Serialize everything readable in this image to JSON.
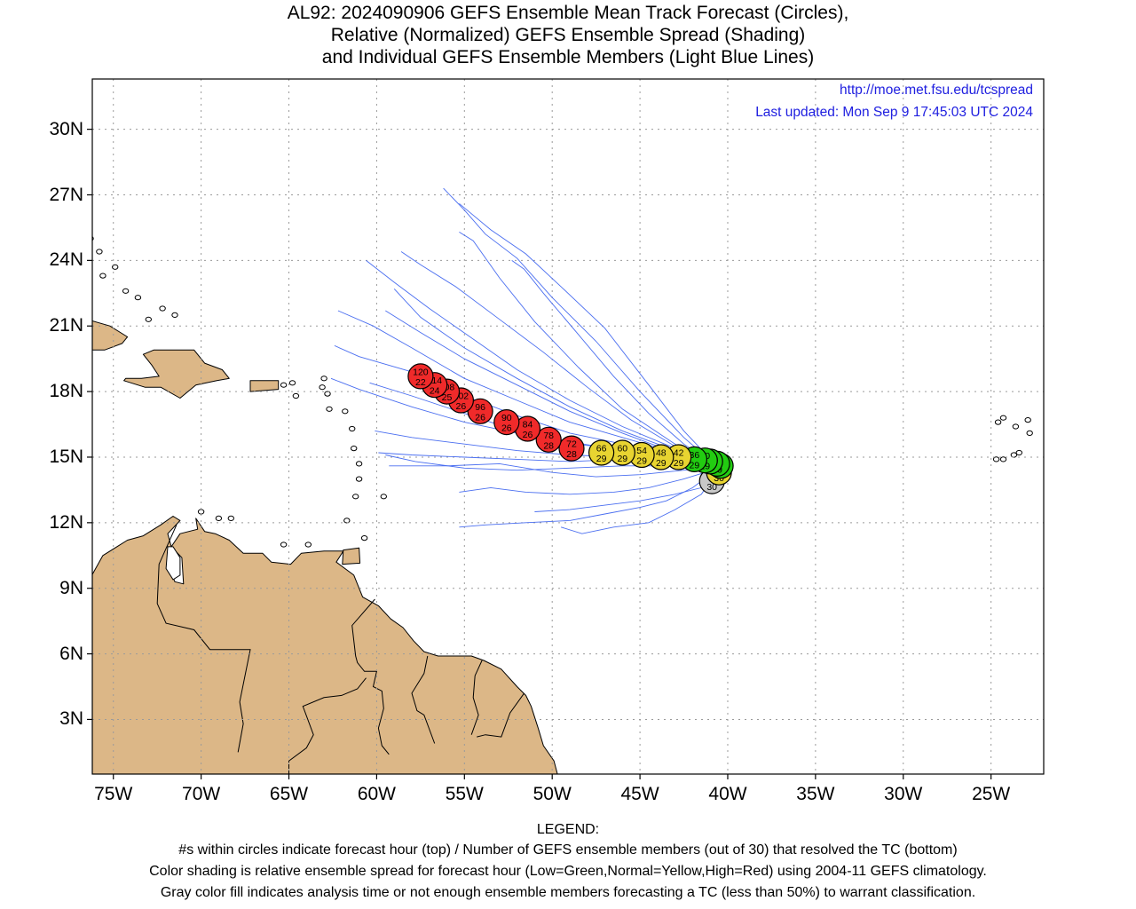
{
  "title": {
    "line1": "AL92: 2024090906 GEFS Ensemble Mean Track Forecast (Circles),",
    "line2": "Relative (Normalized) GEFS Ensemble Spread (Shading)",
    "line3": "and Individual GEFS Ensemble Members (Light Blue Lines)"
  },
  "header_links": {
    "url": "http://moe.met.fsu.edu/tcspread",
    "updated": "Last updated: Mon Sep  9 17:45:03 UTC 2024"
  },
  "axes": {
    "x_ticks": [
      "75W",
      "70W",
      "65W",
      "60W",
      "55W",
      "50W",
      "45W",
      "40W",
      "35W",
      "30W",
      "25W"
    ],
    "x_values": [
      -75,
      -70,
      -65,
      -60,
      -55,
      -50,
      -45,
      -40,
      -35,
      -30,
      -25
    ],
    "y_ticks": [
      "3N",
      "6N",
      "9N",
      "12N",
      "15N",
      "18N",
      "21N",
      "24N",
      "27N",
      "30N"
    ],
    "y_values": [
      3,
      6,
      9,
      12,
      15,
      18,
      21,
      24,
      27,
      30
    ],
    "lon_range": [
      -76.2,
      -22.0
    ],
    "lat_range": [
      0.5,
      32.3
    ],
    "grid": "dotted"
  },
  "colors": {
    "land": "#dcb787",
    "track_member": "#4a6ef0",
    "spread_low": "#22cc11",
    "spread_normal": "#e8d431",
    "spread_high": "#f02a2a",
    "analysis_gray": "#c8c8c8"
  },
  "chart_data": {
    "type": "scatter",
    "series_name": "GEFS Ensemble Mean Track",
    "points": [
      {
        "hour": "0",
        "members": "30",
        "lon": -40.9,
        "lat": 13.9,
        "spread": "gray"
      },
      {
        "hour": "6",
        "members": "30",
        "lon": -40.5,
        "lat": 14.3,
        "spread": "yellow"
      },
      {
        "hour": "12",
        "members": "29",
        "lon": -40.4,
        "lat": 14.6,
        "spread": "green"
      },
      {
        "hour": "18",
        "members": "29",
        "lon": -40.6,
        "lat": 14.7,
        "spread": "green"
      },
      {
        "hour": "24",
        "members": "29",
        "lon": -41.0,
        "lat": 14.8,
        "spread": "green"
      },
      {
        "hour": "30",
        "members": "29",
        "lon": -41.3,
        "lat": 14.85,
        "spread": "green"
      },
      {
        "hour": "36",
        "members": "29",
        "lon": -41.9,
        "lat": 14.9,
        "spread": "green"
      },
      {
        "hour": "42",
        "members": "29",
        "lon": -42.8,
        "lat": 15.0,
        "spread": "yellow"
      },
      {
        "hour": "48",
        "members": "29",
        "lon": -43.8,
        "lat": 15.0,
        "spread": "yellow"
      },
      {
        "hour": "54",
        "members": "29",
        "lon": -44.9,
        "lat": 15.1,
        "spread": "yellow"
      },
      {
        "hour": "60",
        "members": "29",
        "lon": -46.0,
        "lat": 15.2,
        "spread": "yellow"
      },
      {
        "hour": "66",
        "members": "29",
        "lon": -47.2,
        "lat": 15.2,
        "spread": "yellow"
      },
      {
        "hour": "72",
        "members": "28",
        "lon": -48.9,
        "lat": 15.4,
        "spread": "red"
      },
      {
        "hour": "78",
        "members": "28",
        "lon": -50.2,
        "lat": 15.8,
        "spread": "red"
      },
      {
        "hour": "84",
        "members": "26",
        "lon": -51.4,
        "lat": 16.3,
        "spread": "red"
      },
      {
        "hour": "90",
        "members": "26",
        "lon": -52.6,
        "lat": 16.6,
        "spread": "red"
      },
      {
        "hour": "96",
        "members": "26",
        "lon": -54.1,
        "lat": 17.1,
        "spread": "red"
      },
      {
        "hour": "102",
        "members": "26",
        "lon": -55.2,
        "lat": 17.6,
        "spread": "red"
      },
      {
        "hour": "108",
        "members": "25",
        "lon": -56.0,
        "lat": 18.0,
        "spread": "red"
      },
      {
        "hour": "114",
        "members": "24",
        "lon": -56.7,
        "lat": 18.3,
        "spread": "red"
      },
      {
        "hour": "120",
        "members": "22",
        "lon": -57.5,
        "lat": 18.7,
        "spread": "red"
      }
    ],
    "members": [
      [
        [
          -40.5,
          14.5
        ],
        [
          -43,
          15.1
        ],
        [
          -46,
          15.6
        ],
        [
          -49,
          16.1
        ],
        [
          -52,
          16.9
        ],
        [
          -55,
          17.8
        ],
        [
          -58,
          18.9
        ],
        [
          -61,
          19.6
        ],
        [
          -62.4,
          20.1
        ]
      ],
      [
        [
          -40.5,
          14.5
        ],
        [
          -43,
          15.2
        ],
        [
          -46,
          15.9
        ],
        [
          -49,
          16.6
        ],
        [
          -52,
          17.6
        ],
        [
          -55,
          18.6
        ],
        [
          -58,
          20.0
        ],
        [
          -60.2,
          21.0
        ],
        [
          -62.2,
          21.7
        ]
      ],
      [
        [
          -40.5,
          14.5
        ],
        [
          -43,
          15.5
        ],
        [
          -45.5,
          16.7
        ],
        [
          -48,
          18.2
        ],
        [
          -50.5,
          19.8
        ],
        [
          -53,
          21.3
        ],
        [
          -55.5,
          22.8
        ],
        [
          -57.5,
          23.8
        ],
        [
          -58.6,
          24.4
        ]
      ],
      [
        [
          -40.5,
          14.5
        ],
        [
          -43,
          15.6
        ],
        [
          -46,
          17.2
        ],
        [
          -48.5,
          19.1
        ],
        [
          -51,
          21.2
        ],
        [
          -53,
          23.2
        ],
        [
          -54.5,
          24.9
        ],
        [
          -55.3,
          25.3
        ]
      ],
      [
        [
          -40.5,
          14.5
        ],
        [
          -42.5,
          15.9
        ],
        [
          -45,
          18.0
        ],
        [
          -47.5,
          20.3
        ],
        [
          -50,
          22.3
        ],
        [
          -52,
          24.1
        ],
        [
          -53.8,
          25.2
        ],
        [
          -55,
          26.3
        ],
        [
          -56.2,
          27.3
        ]
      ],
      [
        [
          -40.5,
          14.5
        ],
        [
          -42.5,
          16.2
        ],
        [
          -44.5,
          18.3
        ],
        [
          -47,
          20.9
        ],
        [
          -49.5,
          22.8
        ],
        [
          -51.5,
          24.3
        ],
        [
          -53.5,
          25.4
        ],
        [
          -55.3,
          26.6
        ]
      ],
      [
        [
          -40.5,
          14.5
        ],
        [
          -43,
          15.3
        ],
        [
          -46,
          16.2
        ],
        [
          -49,
          17.3
        ],
        [
          -52,
          18.6
        ],
        [
          -55,
          20.0
        ],
        [
          -57.5,
          21.4
        ],
        [
          -59,
          22.7
        ]
      ],
      [
        [
          -40.5,
          14.5
        ],
        [
          -43,
          15.1
        ],
        [
          -46,
          15.4
        ],
        [
          -49,
          15.6
        ],
        [
          -52,
          16.1
        ],
        [
          -55,
          16.6
        ],
        [
          -58,
          17.3
        ],
        [
          -61,
          18.1
        ],
        [
          -62.6,
          18.6
        ]
      ],
      [
        [
          -40.5,
          14.5
        ],
        [
          -43,
          14.9
        ],
        [
          -46,
          15.0
        ],
        [
          -49,
          15.1
        ],
        [
          -52,
          15.3
        ],
        [
          -55,
          15.6
        ],
        [
          -58,
          15.9
        ],
        [
          -60.1,
          16.2
        ]
      ],
      [
        [
          -40.5,
          14.5
        ],
        [
          -43,
          14.8
        ],
        [
          -46,
          14.9
        ],
        [
          -49,
          14.8
        ],
        [
          -52,
          14.9
        ],
        [
          -55,
          15.0
        ],
        [
          -58,
          15.1
        ],
        [
          -59.9,
          15.2
        ]
      ],
      [
        [
          -40.5,
          14.5
        ],
        [
          -42.5,
          14.4
        ],
        [
          -45,
          14.2
        ],
        [
          -47.5,
          14.1
        ],
        [
          -50,
          14.3
        ],
        [
          -53,
          14.7
        ],
        [
          -56,
          14.6
        ],
        [
          -59.3,
          14.6
        ]
      ],
      [
        [
          -40.5,
          14.5
        ],
        [
          -42.5,
          14.0
        ],
        [
          -44.5,
          13.6
        ],
        [
          -46.5,
          13.4
        ],
        [
          -49,
          13.3
        ],
        [
          -51.5,
          13.4
        ],
        [
          -53.5,
          13.6
        ],
        [
          -55.3,
          13.4
        ]
      ],
      [
        [
          -40.5,
          14.5
        ],
        [
          -42,
          13.6
        ],
        [
          -43.5,
          13.0
        ],
        [
          -45,
          12.7
        ],
        [
          -47,
          12.4
        ],
        [
          -49,
          12.1
        ],
        [
          -51.5,
          12.0
        ],
        [
          -53.8,
          11.9
        ],
        [
          -55.3,
          11.8
        ]
      ],
      [
        [
          -40.5,
          14.5
        ],
        [
          -41.5,
          13.3
        ],
        [
          -43,
          12.6
        ],
        [
          -44.5,
          12.0
        ],
        [
          -46.5,
          11.8
        ],
        [
          -48.3,
          11.5
        ],
        [
          -49.5,
          11.8
        ]
      ],
      [
        [
          -40.5,
          14.5
        ],
        [
          -41.5,
          13.6
        ],
        [
          -43,
          13.3
        ],
        [
          -45,
          13.0
        ],
        [
          -47,
          12.8
        ],
        [
          -49,
          12.6
        ],
        [
          -51,
          12.5
        ]
      ],
      [
        [
          -40.5,
          14.5
        ],
        [
          -43,
          14.6
        ],
        [
          -46,
          14.6
        ],
        [
          -49,
          14.5
        ],
        [
          -52,
          14.4
        ],
        [
          -55,
          14.5
        ],
        [
          -57.8,
          14.8
        ],
        [
          -59.5,
          15.1
        ]
      ],
      [
        [
          -40.5,
          14.5
        ],
        [
          -43,
          15.0
        ],
        [
          -46,
          15.3
        ],
        [
          -49,
          15.7
        ],
        [
          -52,
          16.2
        ],
        [
          -55,
          17.0
        ],
        [
          -58,
          17.8
        ],
        [
          -60.4,
          18.4
        ]
      ],
      [
        [
          -40.5,
          14.5
        ],
        [
          -43,
          15.4
        ],
        [
          -46,
          16.4
        ],
        [
          -49,
          17.6
        ],
        [
          -52,
          19.0
        ],
        [
          -54.5,
          20.4
        ],
        [
          -57,
          21.8
        ],
        [
          -59,
          23.0
        ],
        [
          -60.6,
          24.0
        ]
      ],
      [
        [
          -40.5,
          14.5
        ],
        [
          -43,
          15.2
        ],
        [
          -46,
          16.1
        ],
        [
          -49,
          17.1
        ],
        [
          -52,
          18.3
        ],
        [
          -55,
          19.5
        ],
        [
          -57.5,
          20.7
        ],
        [
          -59.5,
          21.7
        ]
      ],
      [
        [
          -40.5,
          14.5
        ],
        [
          -42.5,
          15.6
        ],
        [
          -44.5,
          17.0
        ],
        [
          -46.5,
          18.7
        ],
        [
          -48.5,
          20.6
        ],
        [
          -50.5,
          22.5
        ],
        [
          -51.6,
          23.6
        ],
        [
          -52.3,
          24.0
        ]
      ]
    ]
  },
  "legend": {
    "heading": "LEGEND:",
    "line1": "#s within circles indicate forecast hour (top) / Number of GEFS ensemble members (out of 30) that resolved the TC (bottom)",
    "line2": "Color shading is relative ensemble spread for forecast hour (Low=Green,Normal=Yellow,High=Red) using 2004-11 GEFS climatology.",
    "line3": "Gray color fill indicates analysis time or not enough ensemble members forecasting a TC (less than 50%) to warrant classification."
  }
}
